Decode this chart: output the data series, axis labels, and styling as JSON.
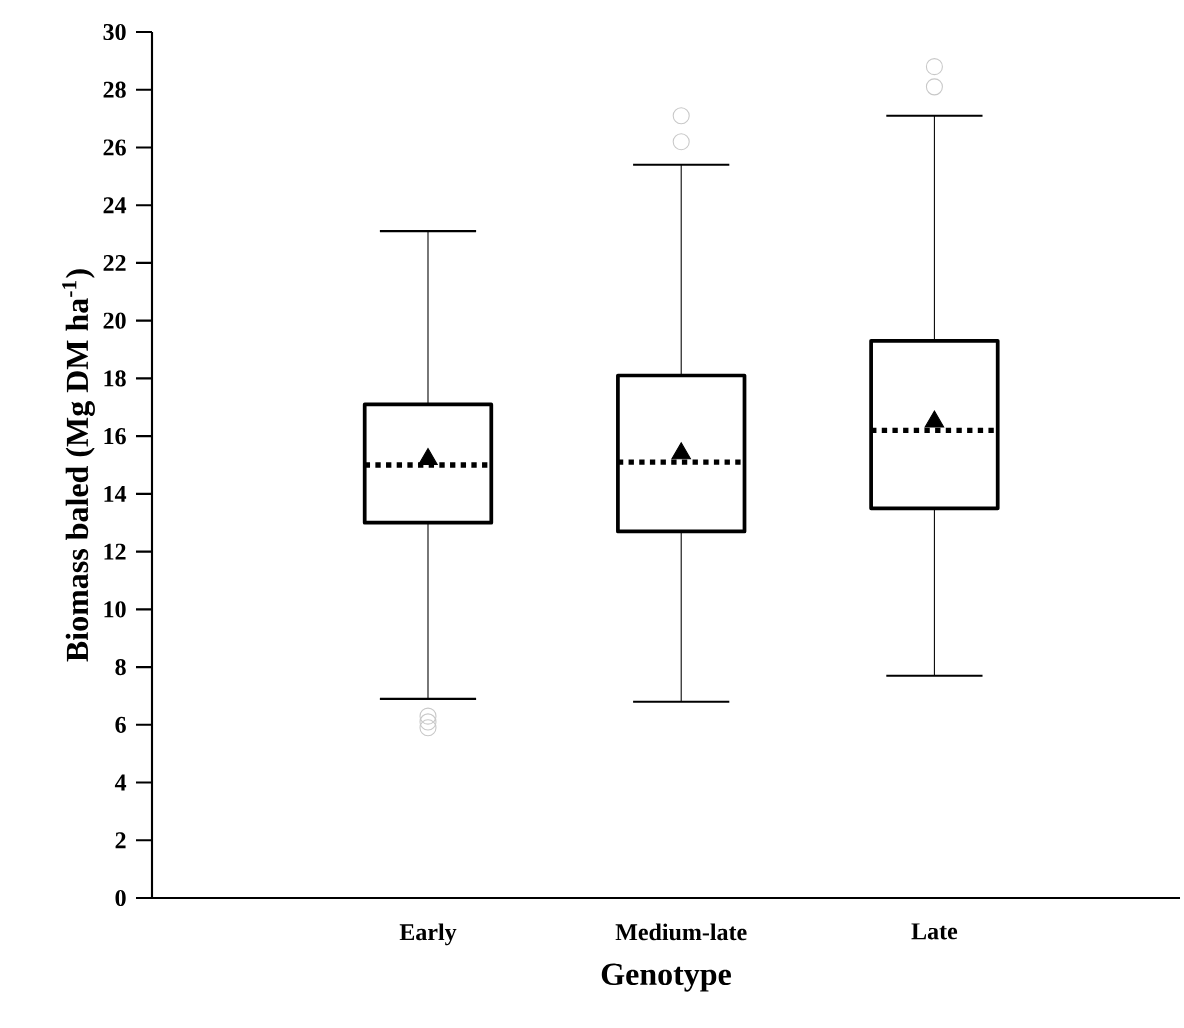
{
  "chart_data": {
    "type": "box",
    "xlabel": "Genotype",
    "ylabel": "Biomass baled (Mg DM ha$^{-1}$)",
    "categories": [
      "Early",
      "Medium-late",
      "Late"
    ],
    "boxes": [
      {
        "low": 6.9,
        "q1": 13.0,
        "median": 15.0,
        "q3": 17.1,
        "high": 23.1,
        "mean": 15.2,
        "outliers": [
          6.3,
          6.1,
          5.9
        ]
      },
      {
        "low": 6.8,
        "q1": 12.7,
        "median": 15.1,
        "q3": 18.1,
        "high": 25.4,
        "mean": 15.4,
        "outliers": [
          27.1,
          26.2
        ]
      },
      {
        "low": 7.7,
        "q1": 13.5,
        "median": 16.2,
        "q3": 19.3,
        "high": 27.1,
        "mean": 16.5,
        "outliers": [
          28.8,
          28.1
        ]
      }
    ],
    "color": "#000000",
    "marker": "triangle",
    "ylim": [
      0,
      30
    ],
    "yticks": [
      0,
      2,
      4,
      6,
      8,
      10,
      12,
      14,
      16,
      18,
      20,
      22,
      24,
      26,
      28,
      30
    ],
    "grid": false
  }
}
